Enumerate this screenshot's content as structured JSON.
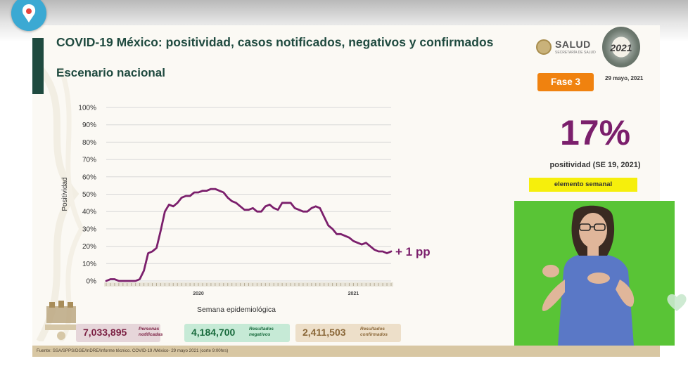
{
  "slide": {
    "title": "COVID-19 México: positividad, casos notificados, negativos y confirmados",
    "subtitle": "Escenario nacional",
    "logo_name": "SALUD",
    "logo_sub": "SECRETARÍA DE SALUD",
    "badge_text": "2021",
    "phase": "Fase 3",
    "report_date": "29 mayo, 2021",
    "big_value": "17%",
    "big_value_label": "positividad (SE 19, 2021)",
    "weekly_label": "elemento semanal",
    "change_label": "+ 1 pp",
    "stats": [
      {
        "value": "7,033,895",
        "label": "Personas notificadas",
        "color": "#7b1f42"
      },
      {
        "value": "4,184,700",
        "label": "Resultados negativos",
        "color": "#196b3d"
      },
      {
        "value": "2,411,503",
        "label": "Resultados confirmados",
        "color": "#8a6738"
      }
    ],
    "source": "Fuente: SSA/SPPS/DGE/InDRE/Informe técnico. COVID-19 /México- 29 mayo 2021 (corte 9:00hrs)"
  },
  "colors": {
    "title_green": "#1f4a3f",
    "line_purple": "#7b1f6c",
    "phase_orange": "#f0820f",
    "weekly_yellow": "#f6ef0c",
    "interpreter_green": "#59c436"
  },
  "overlay": {
    "app_icon": "periscope-icon",
    "reaction_icon": "heart-icon"
  },
  "chart_data": {
    "type": "line",
    "ylabel": "Positividad",
    "xlabel": "Semana epidemiológica",
    "ylim": [
      0,
      100
    ],
    "yticks": [
      "0%",
      "10%",
      "20%",
      "30%",
      "40%",
      "50%",
      "60%",
      "70%",
      "80%",
      "90%",
      "100%"
    ],
    "year_labels": [
      "2020",
      "2021"
    ],
    "grid": true,
    "series": [
      {
        "values": [
          0,
          1,
          1,
          0,
          0,
          0,
          0,
          0,
          1,
          6,
          16,
          17,
          19,
          29,
          40,
          44,
          43,
          45,
          48,
          49,
          49,
          51,
          51,
          52,
          52,
          53,
          53,
          52,
          51,
          48,
          46,
          45,
          43,
          41,
          41,
          42,
          40,
          40,
          43,
          44,
          42,
          41,
          45,
          45,
          45,
          42,
          41,
          40,
          40,
          42,
          43,
          42,
          37,
          32,
          30,
          27,
          27,
          26,
          25,
          23,
          22,
          21,
          22,
          20,
          18,
          17,
          17,
          16,
          17
        ]
      }
    ]
  }
}
